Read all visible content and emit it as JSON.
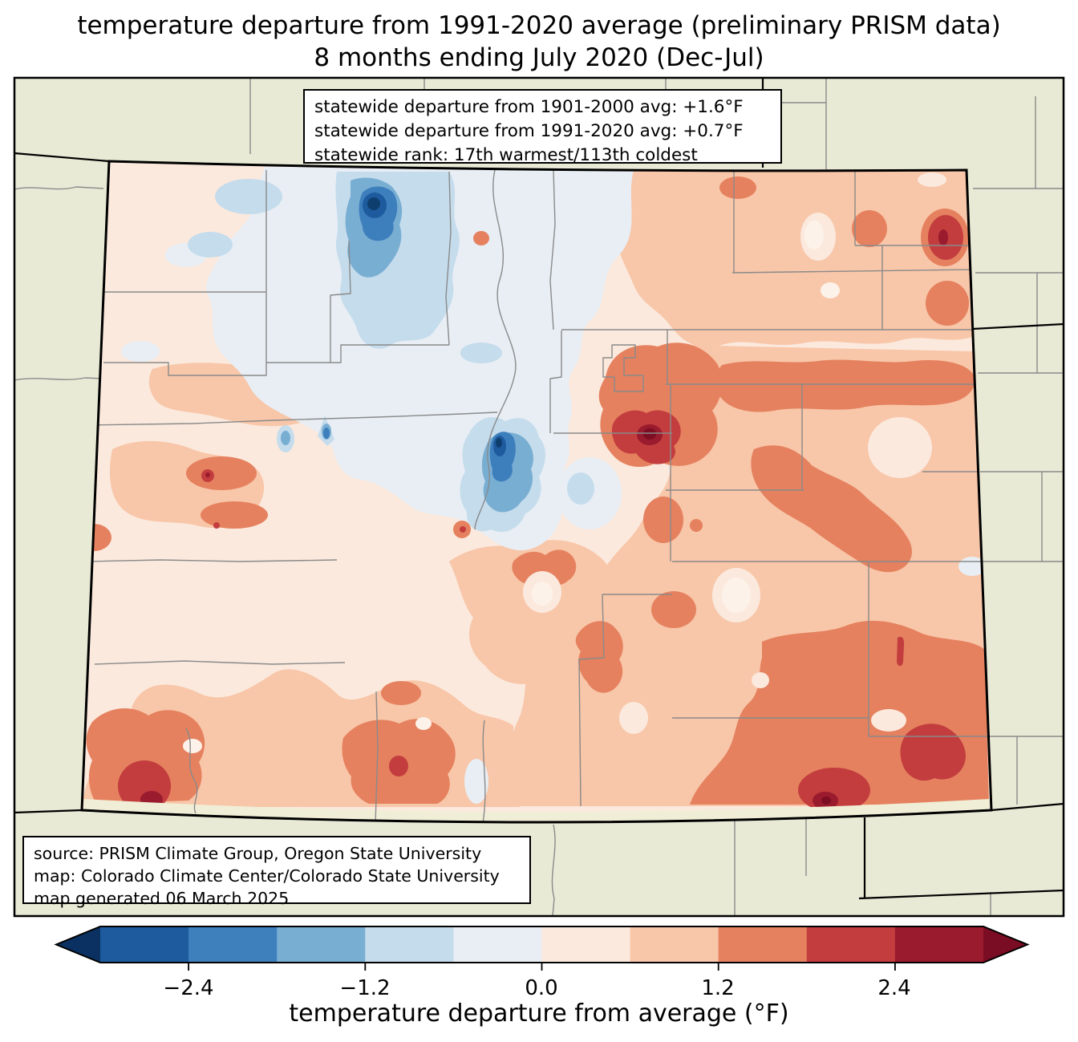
{
  "title": {
    "line1": "temperature departure from 1991-2020 average (preliminary PRISM data)",
    "line2": "8 months ending July 2020 (Dec-Jul)"
  },
  "stats_box": {
    "line1": "statewide departure from 1901-2000 avg: +1.6°F",
    "line2": "statewide departure from 1991-2020 avg: +0.7°F",
    "line3": "statewide rank: 17th warmest/113th coldest"
  },
  "source_box": {
    "line1": "source: PRISM Climate Group, Oregon State University",
    "line2": "map: Colorado Climate Center/Colorado State University",
    "line3": "map generated 06 March 2025"
  },
  "colorbar": {
    "label": "temperature departure from average (°F)",
    "ticks": [
      "−2.4",
      "−1.2",
      "0.0",
      "1.2",
      "2.4"
    ],
    "tick_values": [
      -2.4,
      -1.2,
      0.0,
      1.2,
      2.4
    ],
    "range_f": [
      -3.0,
      3.0
    ],
    "segment_step_f": 0.6,
    "under_color": "#0a3161",
    "over_color": "#7a0c23",
    "segments": [
      "#1d5a9e",
      "#3e80bc",
      "#79aed3",
      "#c5dcec",
      "#e8eef4",
      "#fbe9dd",
      "#f8c6a8",
      "#e5815f",
      "#c33d3e",
      "#9a1b2d"
    ]
  },
  "map": {
    "region": "Colorado",
    "outside_fill": "#e9ead6",
    "state_border_color": "#000000",
    "county_line_color": "#8a8a8a",
    "anomaly_extremes": {
      "coolest_areas": "north-central and central mountain pockets (below -2.4°F)",
      "warmest_areas": "east-central, northeast corner, southeast and southwest pockets (above +2.4°F)"
    }
  }
}
